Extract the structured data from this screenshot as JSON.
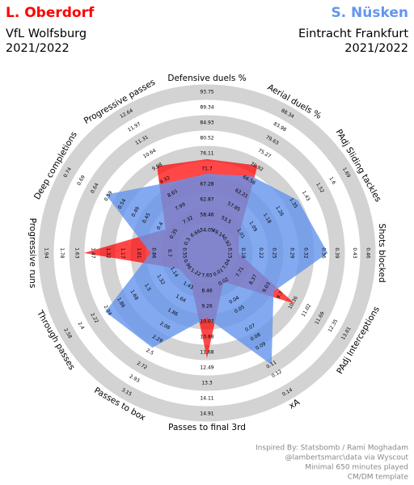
{
  "chart_data": {
    "type": "radar",
    "series": [
      {
        "name": "L. Oberdorf",
        "team": "VfL Wolfsburg",
        "season": "2021/2022",
        "color": "#ff0000",
        "values": [
          74.5,
          71.4,
          1.0,
          0.17,
          10.44,
          0.02,
          11.98,
          1.36,
          1.07,
          1.56,
          0.38,
          10.02
        ]
      },
      {
        "name": "S. Nüsken",
        "team": "Eintracht Frankfurt",
        "season": "2021/2022",
        "color": "#6495ed",
        "values": [
          70.3,
          67.9,
          1.38,
          0.37,
          9.38,
          0.11,
          9.86,
          2.43,
          2.07,
          0.89,
          0.6,
          9.18
        ]
      }
    ],
    "params": [
      {
        "name": "Defensive duels %",
        "range": [
          54.05,
          93.75
        ],
        "ticks": [
          54.05,
          58.46,
          62.87,
          67.28,
          71.7,
          76.11,
          80.52,
          84.93,
          89.34,
          93.75
        ]
      },
      {
        "name": "Aerial duels  %",
        "range": [
          49.14,
          88.34
        ],
        "ticks": [
          49.14,
          53.5,
          57.85,
          62.21,
          66.56,
          70.92,
          75.27,
          79.63,
          83.98,
          88.34
        ]
      },
      {
        "name": "PAdj Sliding tackles",
        "range": [
          0.92,
          1.69
        ],
        "ticks": [
          0.92,
          1.01,
          1.09,
          1.18,
          1.26,
          1.35,
          1.43,
          1.52,
          1.6,
          1.69
        ]
      },
      {
        "name": "Shots blocked",
        "range": [
          0.15,
          0.46
        ],
        "ticks": [
          0.15,
          0.18,
          0.22,
          0.25,
          0.29,
          0.32,
          0.36,
          0.39,
          0.43,
          0.46
        ]
      },
      {
        "name": "PAdj Interceptions",
        "range": [
          7.04,
          13.01
        ],
        "ticks": [
          7.04,
          7.71,
          8.37,
          9.03,
          9.7,
          10.36,
          11.02,
          11.69,
          12.35,
          13.01
        ]
      },
      {
        "name": "xA",
        "range": [
          0.01,
          0.14
        ],
        "ticks": [
          0.01,
          0.02,
          0.04,
          0.05,
          0.07,
          0.08,
          0.09,
          0.11,
          0.12,
          0.14
        ]
      },
      {
        "name": "Passes to final 3rd",
        "range": [
          7.65,
          14.91
        ],
        "ticks": [
          7.65,
          8.46,
          9.26,
          10.07,
          10.88,
          11.68,
          12.49,
          13.3,
          14.11,
          14.91
        ]
      },
      {
        "name": "Passes to box",
        "range": [
          1.22,
          3.15
        ],
        "ticks": [
          1.22,
          1.43,
          1.64,
          1.86,
          2.08,
          2.29,
          2.5,
          2.72,
          2.93,
          3.15
        ]
      },
      {
        "name": "Through passes",
        "range": [
          0.96,
          2.58
        ],
        "ticks": [
          0.96,
          1.14,
          1.32,
          1.5,
          1.68,
          1.86,
          2.04,
          2.22,
          2.4,
          2.58
        ]
      },
      {
        "name": "Progressive runs",
        "range": [
          0.55,
          1.94
        ],
        "ticks": [
          0.55,
          0.7,
          0.86,
          1.01,
          1.17,
          1.32,
          1.47,
          1.63,
          1.78,
          1.94
        ]
      },
      {
        "name": "Deep completions",
        "range": [
          0.3,
          0.74
        ],
        "ticks": [
          0.3,
          0.35,
          0.4,
          0.45,
          0.49,
          0.54,
          0.59,
          0.64,
          0.69,
          0.74
        ]
      },
      {
        "name": "Progressive passes",
        "range": [
          6.66,
          12.64
        ],
        "ticks": [
          6.66,
          7.32,
          7.99,
          8.65,
          9.32,
          9.98,
          10.64,
          11.31,
          11.97,
          12.64
        ]
      }
    ],
    "endnote": [
      "Inspired By: Statsbomb / Rami Moghadam",
      "@lambertsmarc\\data via Wyscout",
      "Minimal 650 minutes played",
      "CM/DM template"
    ]
  }
}
